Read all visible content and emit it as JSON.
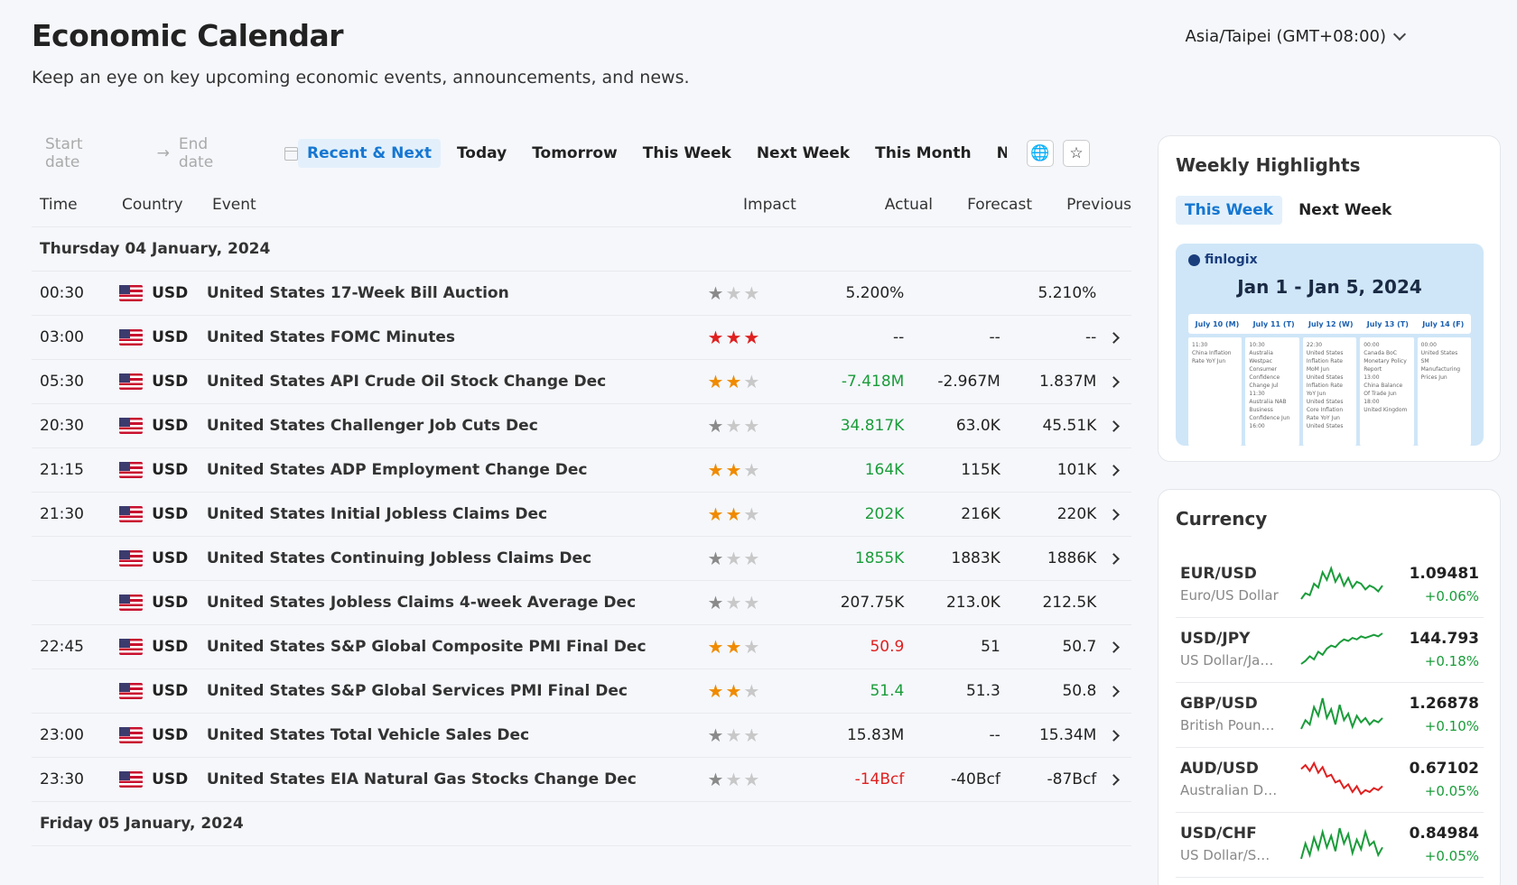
{
  "header": {
    "title": "Economic Calendar",
    "subtitle": "Keep an eye on key upcoming economic events, announcements, and news.",
    "timezone": "Asia/Taipei (GMT+08:00)"
  },
  "filters": {
    "start_placeholder": "Start date",
    "end_placeholder": "End date",
    "tabs": [
      "Recent & Next",
      "Today",
      "Tomorrow",
      "This Week",
      "Next Week",
      "This Month",
      "Next Mont"
    ],
    "active_tab": "Recent & Next"
  },
  "table": {
    "columns": {
      "time": "Time",
      "country": "Country",
      "event": "Event",
      "impact": "Impact",
      "actual": "Actual",
      "forecast": "Forecast",
      "previous": "Previous"
    },
    "days": [
      {
        "label": "Thursday 04 January, 2024",
        "rows": [
          {
            "time": "00:30",
            "country": "USD",
            "event": "United States 17-Week Bill Auction",
            "impact": 1,
            "actual": "5.200%",
            "actual_tone": "neutral",
            "forecast": "",
            "previous": "5.210%",
            "has_detail": false
          },
          {
            "time": "03:00",
            "country": "USD",
            "event": "United States FOMC Minutes",
            "impact": 3,
            "actual": "--",
            "actual_tone": "neutral",
            "forecast": "--",
            "previous": "--",
            "has_detail": true
          },
          {
            "time": "05:30",
            "country": "USD",
            "event": "United States API Crude Oil Stock Change Dec",
            "impact": 2,
            "actual": "-7.418M",
            "actual_tone": "green",
            "forecast": "-2.967M",
            "previous": "1.837M",
            "has_detail": true
          },
          {
            "time": "20:30",
            "country": "USD",
            "event": "United States Challenger Job Cuts Dec",
            "impact": 1,
            "actual": "34.817K",
            "actual_tone": "green",
            "forecast": "63.0K",
            "previous": "45.51K",
            "has_detail": true
          },
          {
            "time": "21:15",
            "country": "USD",
            "event": "United States ADP Employment Change Dec",
            "impact": 2,
            "actual": "164K",
            "actual_tone": "green",
            "forecast": "115K",
            "previous": "101K",
            "has_detail": true
          },
          {
            "time": "21:30",
            "country": "USD",
            "event": "United States Initial Jobless Claims Dec",
            "impact": 2,
            "actual": "202K",
            "actual_tone": "green",
            "forecast": "216K",
            "previous": "220K",
            "has_detail": true
          },
          {
            "time": "",
            "country": "USD",
            "event": "United States Continuing Jobless Claims Dec",
            "impact": 1,
            "actual": "1855K",
            "actual_tone": "green",
            "forecast": "1883K",
            "previous": "1886K",
            "has_detail": true
          },
          {
            "time": "",
            "country": "USD",
            "event": "United States Jobless Claims 4-week Average Dec",
            "impact": 1,
            "actual": "207.75K",
            "actual_tone": "neutral",
            "forecast": "213.0K",
            "previous": "212.5K",
            "has_detail": false
          },
          {
            "time": "22:45",
            "country": "USD",
            "event": "United States S&P Global Composite PMI Final Dec",
            "impact": 2,
            "actual": "50.9",
            "actual_tone": "red",
            "forecast": "51",
            "previous": "50.7",
            "has_detail": true
          },
          {
            "time": "",
            "country": "USD",
            "event": "United States S&P Global Services PMI Final Dec",
            "impact": 2,
            "actual": "51.4",
            "actual_tone": "green",
            "forecast": "51.3",
            "previous": "50.8",
            "has_detail": true
          },
          {
            "time": "23:00",
            "country": "USD",
            "event": "United States Total Vehicle Sales Dec",
            "impact": 1,
            "actual": "15.83M",
            "actual_tone": "neutral",
            "forecast": "--",
            "previous": "15.34M",
            "has_detail": true
          },
          {
            "time": "23:30",
            "country": "USD",
            "event": "United States EIA Natural Gas Stocks Change Dec",
            "impact": 1,
            "actual": "-14Bcf",
            "actual_tone": "red",
            "forecast": "-40Bcf",
            "previous": "-87Bcf",
            "has_detail": true
          }
        ]
      },
      {
        "label": "Friday 05 January, 2024",
        "rows": []
      }
    ]
  },
  "weekly_highlights": {
    "title": "Weekly Highlights",
    "tabs": [
      "This Week",
      "Next Week"
    ],
    "active_tab": "This Week",
    "banner": {
      "brand": "finlogix",
      "range": "Jan 1 - Jan 5, 2024",
      "days": [
        "July 10 (M)",
        "July 11 (T)",
        "July 12 (W)",
        "July 13 (T)",
        "July 14 (F)"
      ],
      "columns": [
        [
          "11:30",
          "China Inflation Rate YoY Jun"
        ],
        [
          "10:30",
          "Australia Westpac Consumer Confidence Change Jul",
          "11:30",
          "Australia NAB Business Confidence Jun",
          "16:00"
        ],
        [
          "22:30",
          "United States Inflation Rate MoM Jun",
          "United States Inflation Rate YoY Jun",
          "United States Core Inflation Rate YoY Jun",
          "United States"
        ],
        [
          "00:00",
          "Canada BoC Monetary Policy Report",
          "13:00",
          "China Balance Of Trade Jun",
          "18:00",
          "United Kingdom"
        ],
        [
          "00:00",
          "United States SM Manufacturing Prices Jun"
        ]
      ]
    }
  },
  "currency": {
    "title": "Currency",
    "items": [
      {
        "pair": "EUR/USD",
        "desc": "Euro/US Dollar",
        "price": "1.09481",
        "change": "+0.06%",
        "trend": "green",
        "spark": [
          6,
          9,
          8,
          14,
          12,
          20,
          16,
          22,
          15,
          19,
          13,
          17,
          12,
          15,
          14,
          11,
          13,
          12,
          10,
          13
        ]
      },
      {
        "pair": "USD/JPY",
        "desc": "US Dollar/Japa...",
        "price": "144.793",
        "change": "+0.18%",
        "trend": "green",
        "spark": [
          4,
          6,
          9,
          7,
          12,
          10,
          14,
          16,
          15,
          18,
          20,
          19,
          21,
          20,
          22,
          21,
          22,
          23,
          22,
          24
        ]
      },
      {
        "pair": "GBP/USD",
        "desc": "British Pound/...",
        "price": "1.26878",
        "change": "+0.10%",
        "trend": "green",
        "spark": [
          8,
          12,
          10,
          18,
          14,
          22,
          13,
          17,
          10,
          19,
          12,
          15,
          9,
          14,
          11,
          13,
          10,
          12,
          11,
          13
        ]
      },
      {
        "pair": "AUD/USD",
        "desc": "Australian Doll...",
        "price": "0.67102",
        "change": "+0.05%",
        "trend": "red",
        "spark": [
          18,
          20,
          17,
          21,
          16,
          19,
          14,
          15,
          11,
          12,
          8,
          10,
          6,
          9,
          5,
          7,
          6,
          8,
          7,
          9
        ]
      },
      {
        "pair": "USD/CHF",
        "desc": "US Dollar/Swis...",
        "price": "0.84984",
        "change": "+0.05%",
        "trend": "green",
        "spark": [
          6,
          14,
          8,
          17,
          11,
          20,
          12,
          18,
          10,
          22,
          14,
          19,
          9,
          16,
          11,
          20,
          13,
          15,
          8,
          12
        ]
      }
    ]
  },
  "colors": {
    "accent": "#1677d2",
    "green": "#1a9c3a",
    "red": "#e02020",
    "star_orange": "#f08a00",
    "star_red": "#e02020",
    "star_grey": "#8a8a8a"
  }
}
